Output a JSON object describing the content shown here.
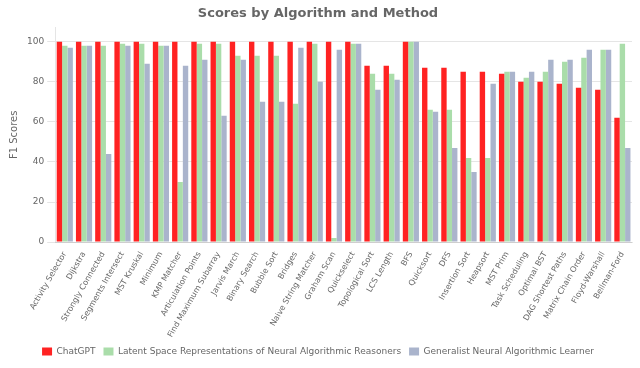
{
  "chart_data": {
    "type": "bar",
    "title": "Scores by Algorithm and Method",
    "ylabel": "F1 Scores",
    "categories": [
      "Activity Selector",
      "Dijkstra",
      "Strongly Connected",
      "Segments Intersect",
      "MST Kruskal",
      "Minimum",
      "KMP Matcher",
      "Articulation Points",
      "Find Maximum Subarray",
      "Jarvis March",
      "Binary Search",
      "Bubble Sort",
      "Bridges",
      "Naive String Matcher",
      "Graham Scan",
      "Quickselect",
      "Topological Sort",
      "LCS Length",
      "BFS",
      "Quicksort",
      "DFS",
      "Insertion Sort",
      "Heapsort",
      "MST Prim",
      "Task Scheduling",
      "Optimal BST",
      "DAG Shortest Paths",
      "Matrix Chain Order",
      "Floyd-Warshall",
      "Bellman-Ford"
    ],
    "series": [
      {
        "name": "ChatGPT",
        "color": "#ff2222",
        "values": [
          100,
          100,
          100,
          100,
          100,
          100,
          100,
          100,
          100,
          100,
          100,
          100,
          100,
          100,
          100,
          100,
          88,
          88,
          100,
          87,
          87,
          85,
          85,
          84,
          80,
          80,
          79,
          77,
          76,
          62
        ]
      },
      {
        "name": "Latent Space Representations of Neural Algorithmic Reasoners",
        "color": "#aaddaa",
        "values": [
          98,
          98,
          98,
          99,
          99,
          98,
          30,
          99,
          99,
          93,
          93,
          93,
          69,
          99,
          2,
          99,
          84,
          84,
          100,
          66,
          66,
          42,
          42,
          85,
          82,
          85,
          90,
          92,
          96,
          99
        ]
      },
      {
        "name": "Generalist Neural Algorithmic Learner",
        "color": "#aab4cc",
        "values": [
          97,
          98,
          44,
          98,
          89,
          98,
          88,
          91,
          63,
          91,
          70,
          70,
          97,
          80,
          96,
          99,
          76,
          81,
          100,
          65,
          47,
          35,
          79,
          85,
          85,
          91,
          91,
          96,
          96,
          47
        ]
      }
    ],
    "ylim": [
      0,
      107
    ],
    "yticks": [
      0,
      20,
      40,
      60,
      80,
      100
    ],
    "grid": true,
    "legend": "bottom"
  }
}
